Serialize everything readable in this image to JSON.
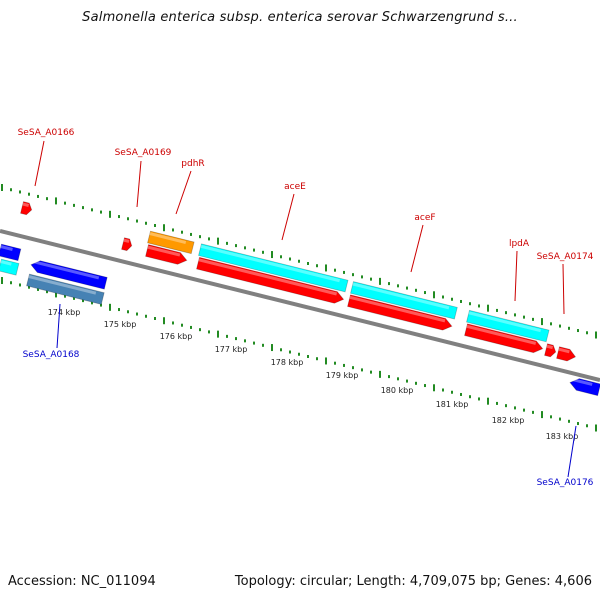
{
  "title": "Salmonella enterica subsp. enterica serovar Schwarzengrund s...",
  "footer": {
    "accession": "Accession: NC_011094",
    "summary": "Topology: circular; Length: 4,709,075 bp; Genes: 4,606"
  },
  "colors": {
    "backbone": "#808080",
    "gene_red": "#ff0000",
    "gene_cyan": "#00ffff",
    "gene_orange": "#ff9900",
    "gene_blue": "#0000ff",
    "gene_steel": "#4682b4",
    "tick_green": "#228b22",
    "label_red": "#cc0000",
    "label_blue": "#0000cc"
  },
  "ruler": [
    "174 kbp",
    "175 kbp",
    "176 kbp",
    "177 kbp",
    "178 kbp",
    "179 kbp",
    "180 kbp",
    "181 kbp",
    "182 kbp",
    "183 kbp"
  ],
  "gene_labels": {
    "SeSA_A0166": "SeSA_A0166",
    "SeSA_A0169": "SeSA_A0169",
    "pdhR": "pdhR",
    "aceE": "aceE",
    "aceF": "aceF",
    "lpdA": "lpdA",
    "SeSA_A0174": "SeSA_A0174",
    "SeSA_A0168": "SeSA_A0168",
    "SeSA_A0176": "SeSA_A0176"
  }
}
